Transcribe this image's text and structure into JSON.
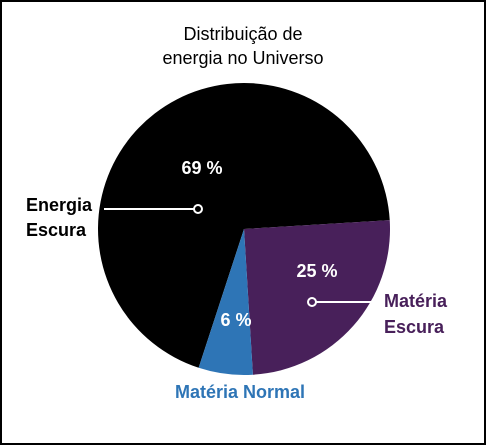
{
  "chart_data": {
    "type": "pie",
    "title": [
      "Distribuição de",
      "energia no Universo"
    ],
    "slices": [
      {
        "label": [
          "Energia",
          "Escura"
        ],
        "value": 69,
        "value_label": "69 %",
        "color": "#000000",
        "label_color": "#000000"
      },
      {
        "label": [
          "Matéria",
          "Escura"
        ],
        "value": 25,
        "value_label": "25 %",
        "color": "#48205a",
        "label_color": "#48205a"
      },
      {
        "label": [
          "Matéria Normal"
        ],
        "value": 6,
        "value_label": "6 %",
        "color": "#2e75b6",
        "label_color": "#2e75b6"
      }
    ]
  }
}
